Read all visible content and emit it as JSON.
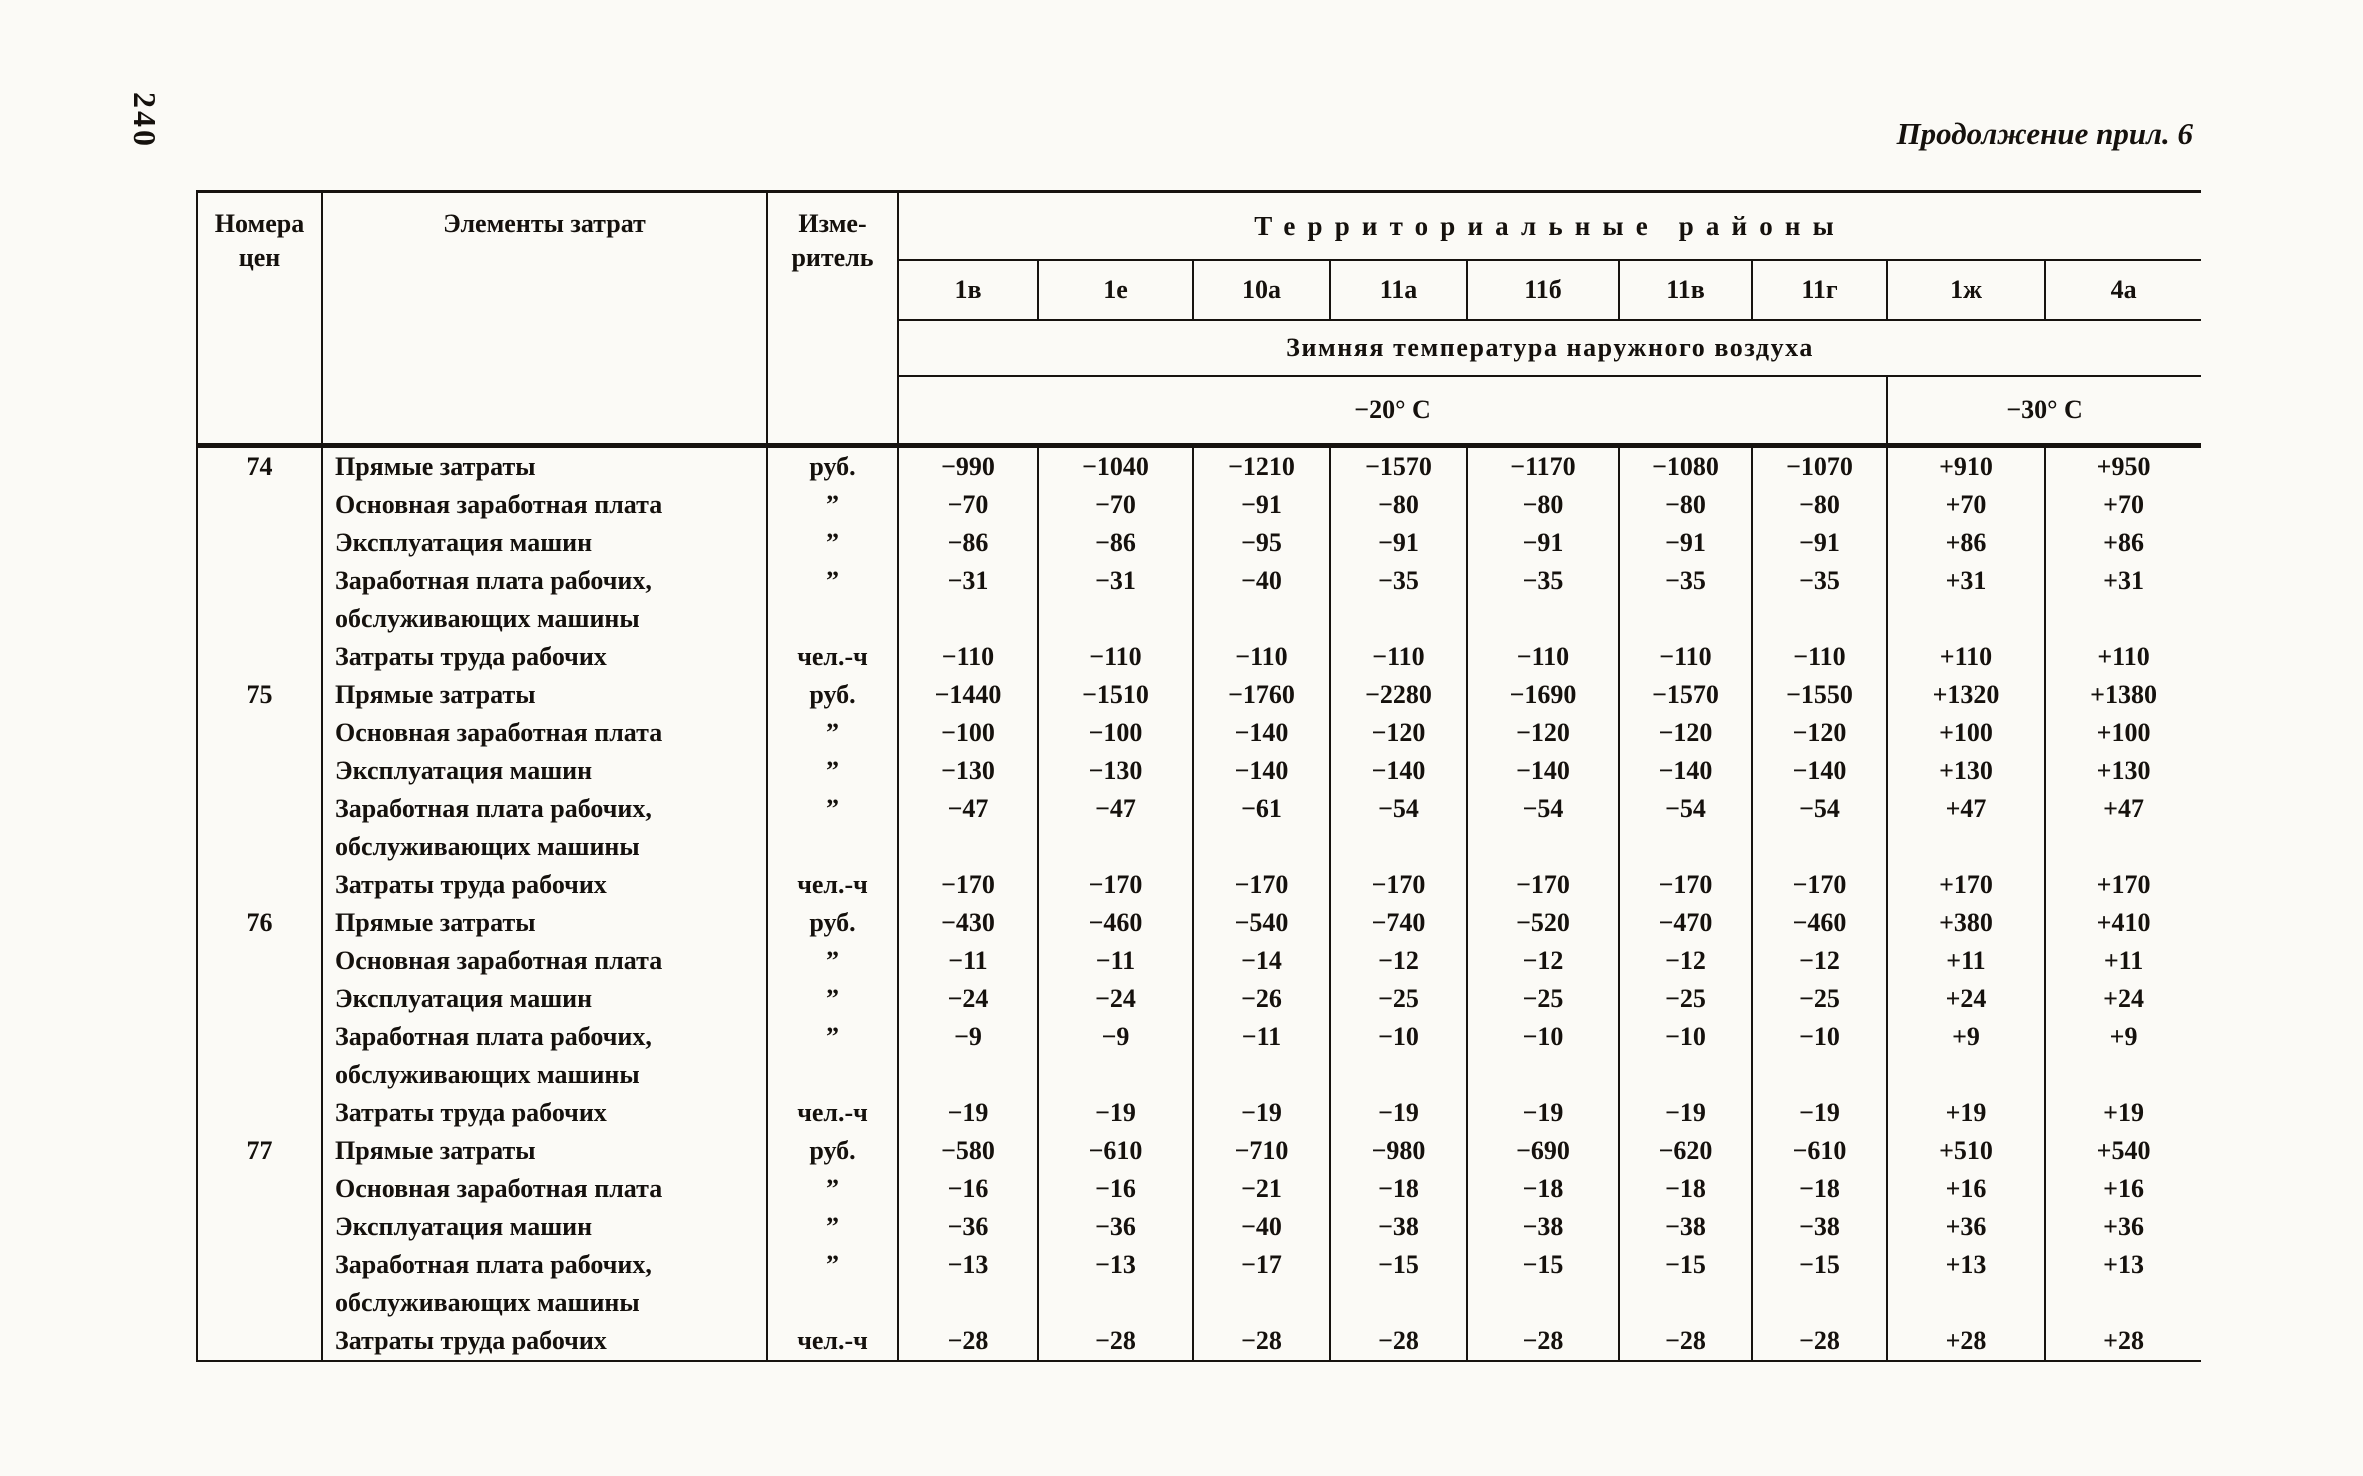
{
  "colors": {
    "ink": "#15110d",
    "paper": "#fbfaf6"
  },
  "page": {
    "page_number": "240",
    "continuation_note": "Продолжение прил. 6"
  },
  "table": {
    "headers": {
      "col1_line1": "Номера",
      "col1_line2": "цен",
      "col2": "Элементы затрат",
      "col3_line1": "Изме-",
      "col3_line2": "ритель",
      "regions_title": "Территориальные районы",
      "regions": [
        "1в",
        "1е",
        "10а",
        "11а",
        "11б",
        "11в",
        "11г",
        "1ж",
        "4а"
      ],
      "temperature_title": "Зимняя температура наружного воздуха",
      "temp_left": "−20° С",
      "temp_right": "−30° С"
    },
    "rows": [
      {
        "num": "74",
        "label": "Прямые затраты",
        "unit": "руб.",
        "values": [
          "−990",
          "−1040",
          "−1210",
          "−1570",
          "−1170",
          "−1080",
          "−1070",
          "+910",
          "+950"
        ]
      },
      {
        "num": "",
        "label": "Основная заработная плата",
        "unit": "”",
        "values": [
          "−70",
          "−70",
          "−91",
          "−80",
          "−80",
          "−80",
          "−80",
          "+70",
          "+70"
        ]
      },
      {
        "num": "",
        "label": "Эксплуатация машин",
        "unit": "”",
        "values": [
          "−86",
          "−86",
          "−95",
          "−91",
          "−91",
          "−91",
          "−91",
          "+86",
          "+86"
        ]
      },
      {
        "num": "",
        "label": "Заработная плата рабочих,",
        "unit": "”",
        "values": [
          "−31",
          "−31",
          "−40",
          "−35",
          "−35",
          "−35",
          "−35",
          "+31",
          "+31"
        ]
      },
      {
        "num": "",
        "label": "обслуживающих машины",
        "unit": "",
        "values": []
      },
      {
        "num": "",
        "label": "Затраты труда рабочих",
        "unit": "чел.-ч",
        "values": [
          "−110",
          "−110",
          "−110",
          "−110",
          "−110",
          "−110",
          "−110",
          "+110",
          "+110"
        ]
      },
      {
        "num": "75",
        "label": "Прямые затраты",
        "unit": "руб.",
        "values": [
          "−1440",
          "−1510",
          "−1760",
          "−2280",
          "−1690",
          "−1570",
          "−1550",
          "+1320",
          "+1380"
        ]
      },
      {
        "num": "",
        "label": "Основная заработная плата",
        "unit": "”",
        "values": [
          "−100",
          "−100",
          "−140",
          "−120",
          "−120",
          "−120",
          "−120",
          "+100",
          "+100"
        ]
      },
      {
        "num": "",
        "label": "Эксплуатация машин",
        "unit": "”",
        "values": [
          "−130",
          "−130",
          "−140",
          "−140",
          "−140",
          "−140",
          "−140",
          "+130",
          "+130"
        ]
      },
      {
        "num": "",
        "label": "Заработная плата рабочих,",
        "unit": "”",
        "values": [
          "−47",
          "−47",
          "−61",
          "−54",
          "−54",
          "−54",
          "−54",
          "+47",
          "+47"
        ]
      },
      {
        "num": "",
        "label": "обслуживающих машины",
        "unit": "",
        "values": []
      },
      {
        "num": "",
        "label": "Затраты труда рабочих",
        "unit": "чел.-ч",
        "values": [
          "−170",
          "−170",
          "−170",
          "−170",
          "−170",
          "−170",
          "−170",
          "+170",
          "+170"
        ]
      },
      {
        "num": "76",
        "label": "Прямые затраты",
        "unit": "руб.",
        "values": [
          "−430",
          "−460",
          "−540",
          "−740",
          "−520",
          "−470",
          "−460",
          "+380",
          "+410"
        ]
      },
      {
        "num": "",
        "label": "Основная заработная плата",
        "unit": "”",
        "values": [
          "−11",
          "−11",
          "−14",
          "−12",
          "−12",
          "−12",
          "−12",
          "+11",
          "+11"
        ]
      },
      {
        "num": "",
        "label": "Эксплуатация машин",
        "unit": "”",
        "values": [
          "−24",
          "−24",
          "−26",
          "−25",
          "−25",
          "−25",
          "−25",
          "+24",
          "+24"
        ]
      },
      {
        "num": "",
        "label": "Заработная плата рабочих,",
        "unit": "”",
        "values": [
          "−9",
          "−9",
          "−11",
          "−10",
          "−10",
          "−10",
          "−10",
          "+9",
          "+9"
        ]
      },
      {
        "num": "",
        "label": "обслуживающих машины",
        "unit": "",
        "values": []
      },
      {
        "num": "",
        "label": "Затраты труда рабочих",
        "unit": "чел.-ч",
        "values": [
          "−19",
          "−19",
          "−19",
          "−19",
          "−19",
          "−19",
          "−19",
          "+19",
          "+19"
        ]
      },
      {
        "num": "77",
        "label": "Прямые затраты",
        "unit": "руб.",
        "values": [
          "−580",
          "−610",
          "−710",
          "−980",
          "−690",
          "−620",
          "−610",
          "+510",
          "+540"
        ]
      },
      {
        "num": "",
        "label": "Основная заработная плата",
        "unit": "”",
        "values": [
          "−16",
          "−16",
          "−21",
          "−18",
          "−18",
          "−18",
          "−18",
          "+16",
          "+16"
        ]
      },
      {
        "num": "",
        "label": "Эксплуатация машин",
        "unit": "”",
        "values": [
          "−36",
          "−36",
          "−40",
          "−38",
          "−38",
          "−38",
          "−38",
          "+36",
          "+36"
        ]
      },
      {
        "num": "",
        "label": "Заработная плата рабочих,",
        "unit": "”",
        "values": [
          "−13",
          "−13",
          "−17",
          "−15",
          "−15",
          "−15",
          "−15",
          "+13",
          "+13"
        ]
      },
      {
        "num": "",
        "label": "обслуживающих машины",
        "unit": "",
        "values": []
      },
      {
        "num": "",
        "label": "Затраты труда рабочих",
        "unit": "чел.-ч",
        "values": [
          "−28",
          "−28",
          "−28",
          "−28",
          "−28",
          "−28",
          "−28",
          "+28",
          "+28"
        ]
      }
    ]
  }
}
